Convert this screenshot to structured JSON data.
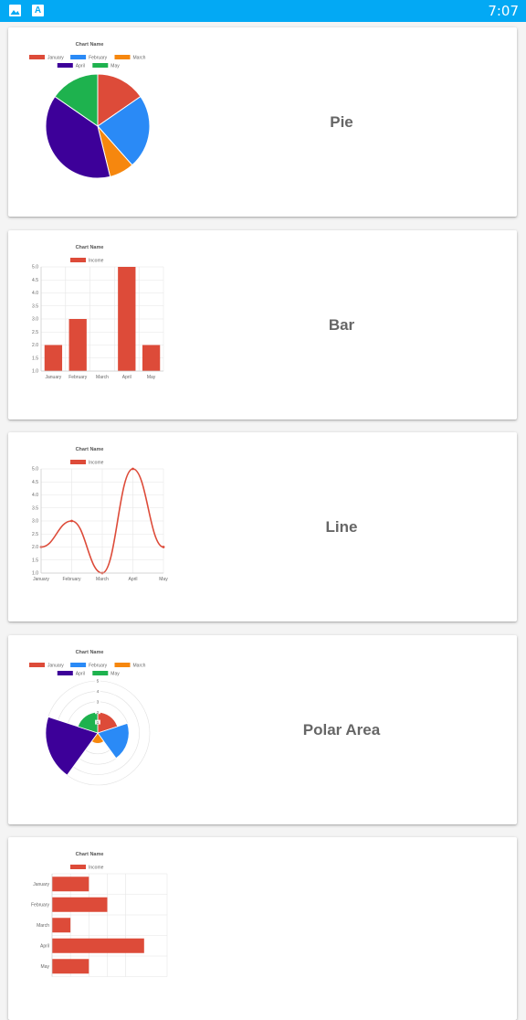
{
  "status_bar": {
    "time": "7:07",
    "icons": [
      "image-icon",
      "font-a-icon"
    ],
    "background": "#03a9f4"
  },
  "colors": {
    "January": "#dd4b39",
    "February": "#2a8af6",
    "March": "#f6870e",
    "April": "#3d0099",
    "May": "#1eb24e"
  },
  "cards": [
    {
      "title": "Pie",
      "chart_data": {
        "type": "pie",
        "title": "Chart Name",
        "categories": [
          "January",
          "February",
          "March",
          "April",
          "May"
        ],
        "values": [
          2,
          3,
          1,
          5,
          2
        ],
        "legend_position": "top"
      }
    },
    {
      "title": "Bar",
      "chart_data": {
        "type": "bar",
        "title": "Chart Name",
        "categories": [
          "January",
          "February",
          "March",
          "April",
          "May"
        ],
        "series": [
          {
            "name": "Income",
            "values": [
              2,
              3,
              1,
              5,
              2
            ]
          }
        ],
        "ylim": [
          1,
          5
        ],
        "yticks": [
          "1.0",
          "1.5",
          "2.0",
          "2.5",
          "3.0",
          "3.5",
          "4.0",
          "4.5",
          "5.0"
        ],
        "grid": true,
        "legend_position": "top"
      }
    },
    {
      "title": "Line",
      "chart_data": {
        "type": "line",
        "title": "Chart Name",
        "categories": [
          "January",
          "February",
          "March",
          "April",
          "May"
        ],
        "series": [
          {
            "name": "Income",
            "values": [
              2,
              3,
              1,
              5,
              2
            ]
          }
        ],
        "ylim": [
          1,
          5
        ],
        "yticks": [
          "1.0",
          "1.5",
          "2.0",
          "2.5",
          "3.0",
          "3.5",
          "4.0",
          "4.5",
          "5.0"
        ],
        "grid": true,
        "legend_position": "top"
      }
    },
    {
      "title": "Polar Area",
      "chart_data": {
        "type": "polarArea",
        "title": "Chart Name",
        "categories": [
          "January",
          "February",
          "March",
          "April",
          "May"
        ],
        "values": [
          2,
          3,
          1,
          5,
          2
        ],
        "rlim": [
          0,
          5
        ],
        "rticks": [
          "1",
          "2",
          "3",
          "4",
          "5"
        ],
        "legend_position": "top"
      }
    },
    {
      "title": "",
      "chart_data": {
        "type": "horizontalBar",
        "title": "Chart Name",
        "categories": [
          "January",
          "February",
          "March",
          "April",
          "May"
        ],
        "series": [
          {
            "name": "Income",
            "values": [
              2,
              3,
              1,
              5,
              2
            ]
          }
        ],
        "grid": true,
        "legend_position": "top"
      }
    }
  ]
}
